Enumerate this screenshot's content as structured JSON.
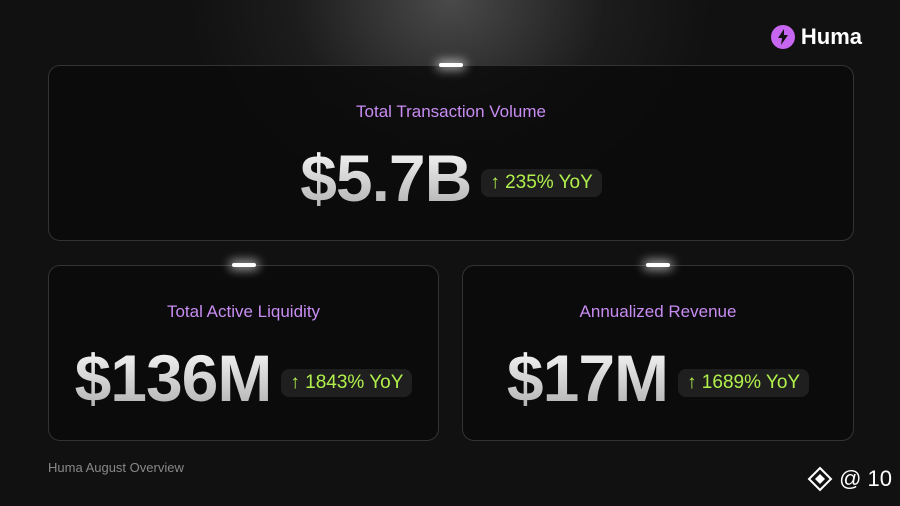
{
  "brand": "Huma",
  "cards": [
    {
      "label": "Total Transaction Volume",
      "value": "$5.7B",
      "change": "↑ 235% YoY"
    },
    {
      "label": "Total Active Liquidity",
      "value": "$136M",
      "change": "↑ 1843% YoY"
    },
    {
      "label": "Annualized Revenue",
      "value": "$17M",
      "change": "↑ 1689% YoY"
    }
  ],
  "footer": "Huma August Overview",
  "watermark": "@ 10"
}
